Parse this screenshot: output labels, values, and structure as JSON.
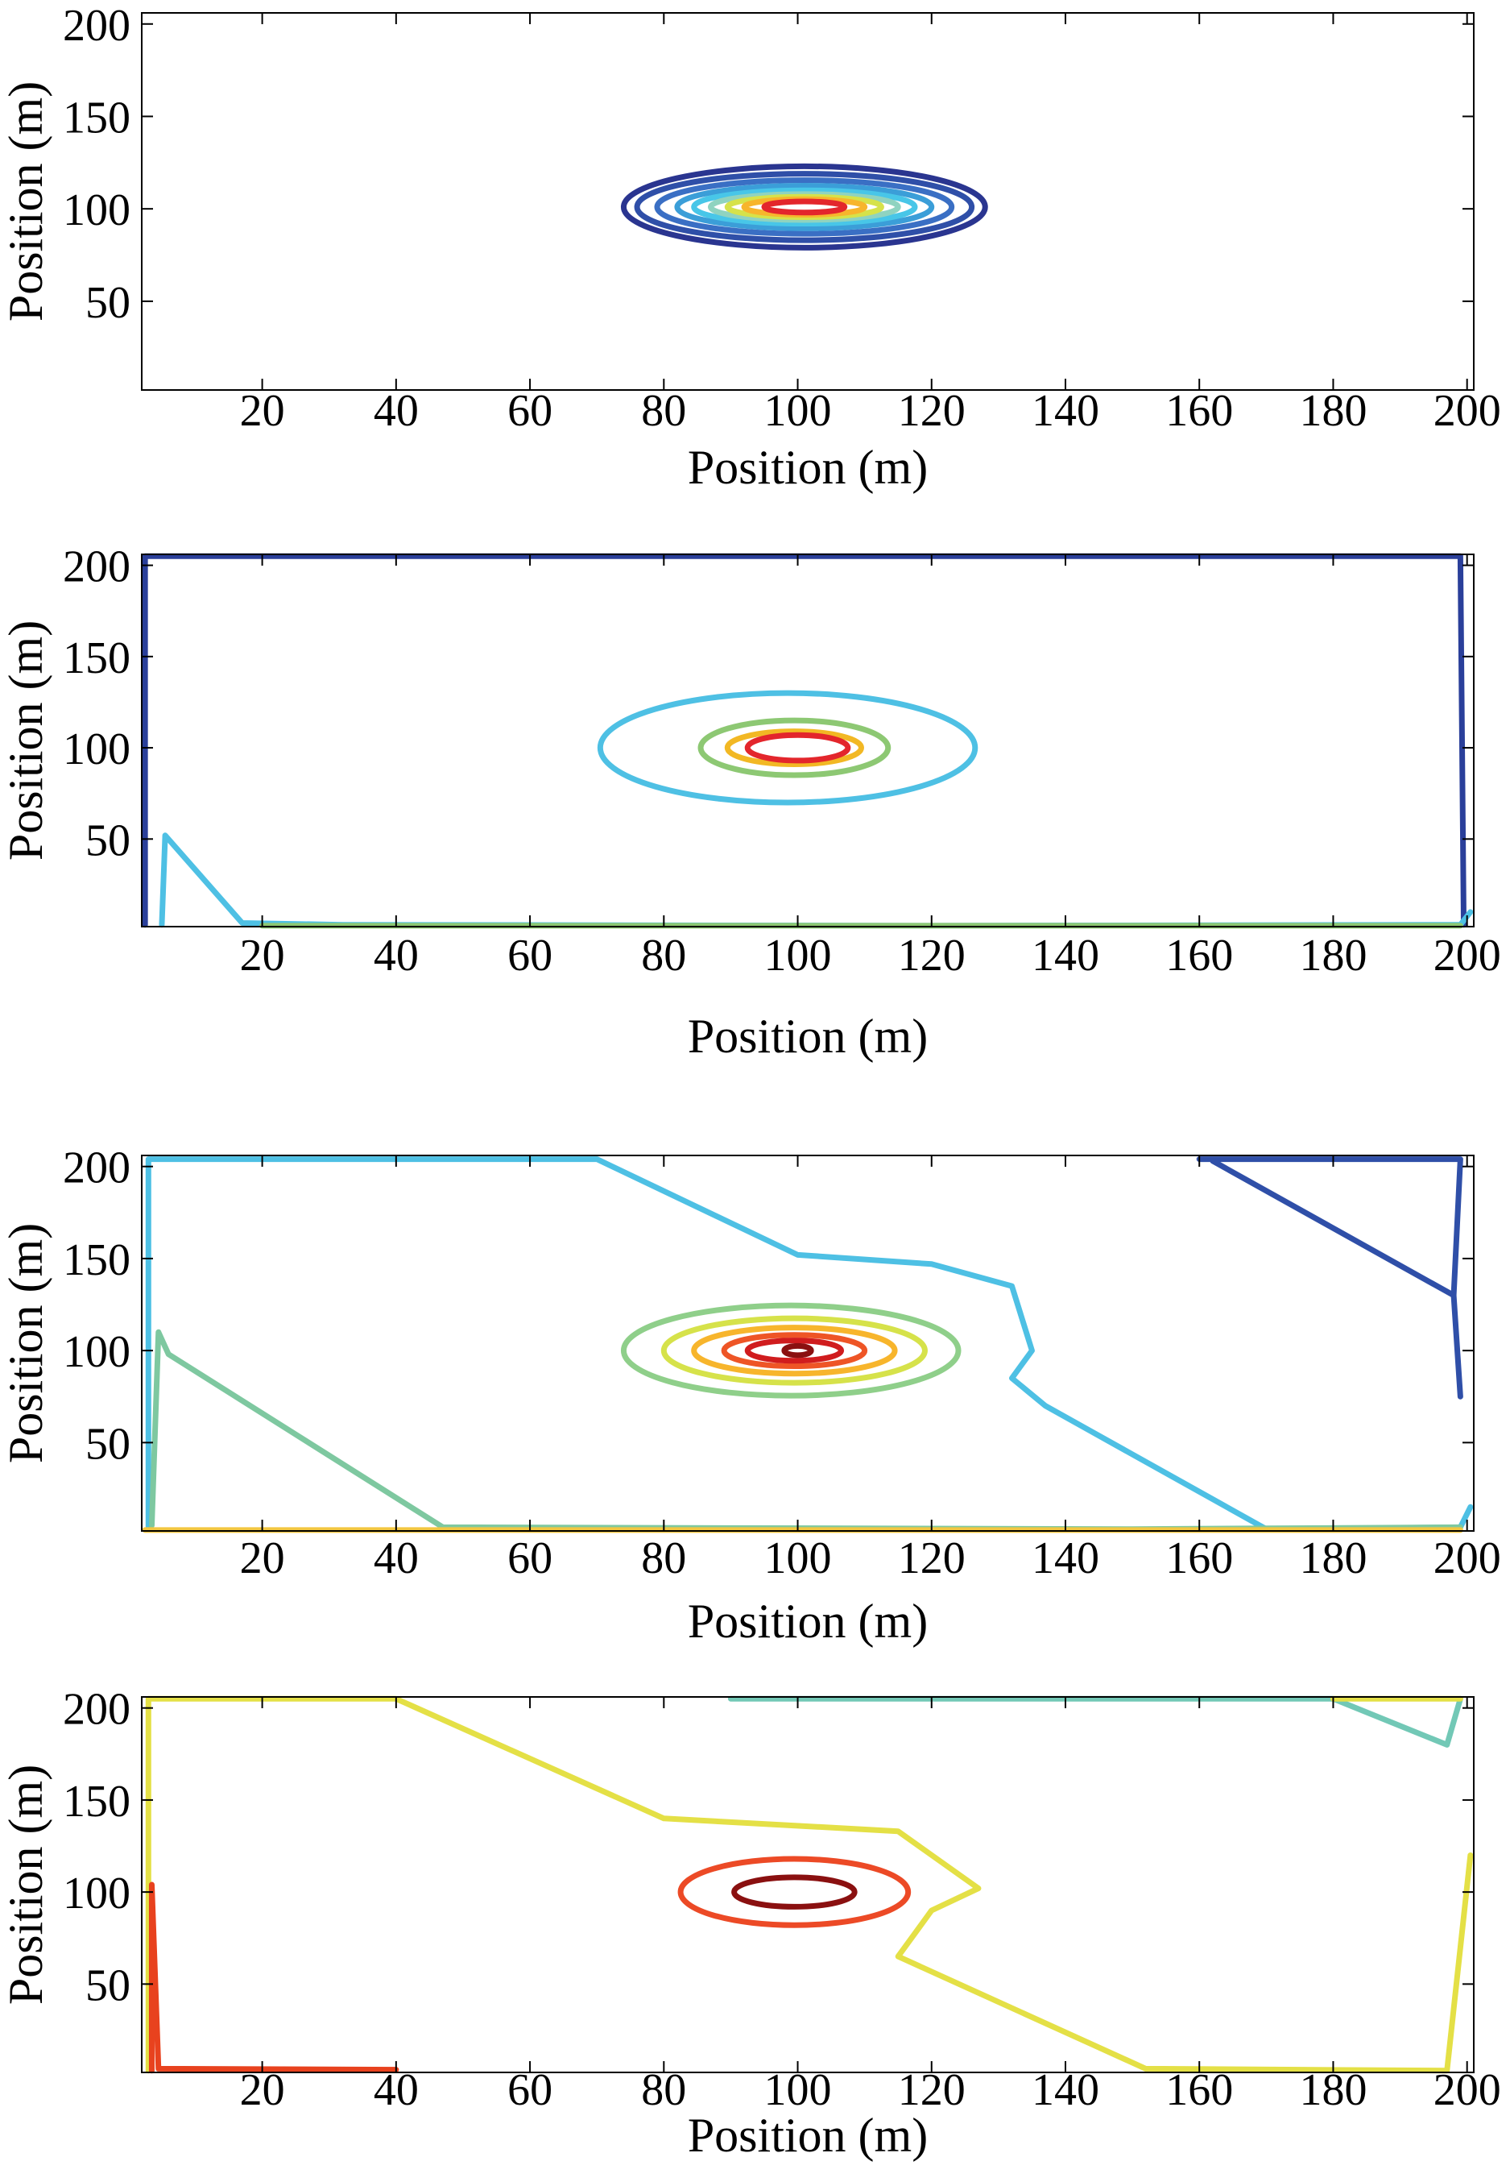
{
  "chart_data": [
    {
      "type": "contour",
      "xlabel": "Position (m)",
      "ylabel": "Position (m)",
      "xlim": [
        2,
        201
      ],
      "ylim": [
        2,
        206
      ],
      "xticks": [
        20,
        40,
        60,
        80,
        100,
        120,
        140,
        160,
        180,
        200
      ],
      "yticks": [
        50,
        100,
        150,
        200
      ],
      "grid": false,
      "contours": [
        {
          "type": "ellipse",
          "cx": 101,
          "cy": 101,
          "rx": 27,
          "ry": 22,
          "color": "#2a3590"
        },
        {
          "type": "ellipse",
          "cx": 101,
          "cy": 101,
          "rx": 25,
          "ry": 18,
          "color": "#2f4fa8"
        },
        {
          "type": "ellipse",
          "cx": 101,
          "cy": 101,
          "rx": 22,
          "ry": 14.5,
          "color": "#3a6fc4"
        },
        {
          "type": "ellipse",
          "cx": 101,
          "cy": 101,
          "rx": 19,
          "ry": 11.5,
          "color": "#3b9ed8"
        },
        {
          "type": "ellipse",
          "cx": 101,
          "cy": 101,
          "rx": 16.5,
          "ry": 9,
          "color": "#48c6e8"
        },
        {
          "type": "ellipse",
          "cx": 101,
          "cy": 101,
          "rx": 14,
          "ry": 7,
          "color": "#8fd3c0"
        },
        {
          "type": "ellipse",
          "cx": 101,
          "cy": 101,
          "rx": 11.5,
          "ry": 5.5,
          "color": "#d6e24a"
        },
        {
          "type": "ellipse",
          "cx": 101,
          "cy": 101,
          "rx": 9,
          "ry": 4.2,
          "color": "#f7b52c"
        },
        {
          "type": "ellipse",
          "cx": 101,
          "cy": 101,
          "rx": 6,
          "ry": 3,
          "color": "#e3262c"
        }
      ]
    },
    {
      "type": "contour",
      "xlabel": "Position (m)",
      "ylabel": "Position (m)",
      "xlim": [
        2,
        201
      ],
      "ylim": [
        2,
        206
      ],
      "xticks": [
        20,
        40,
        60,
        80,
        100,
        120,
        140,
        160,
        180,
        200
      ],
      "yticks": [
        50,
        100,
        150,
        200
      ],
      "grid": false,
      "contours": [
        {
          "type": "ellipse",
          "cx": 98.5,
          "cy": 100,
          "rx": 28,
          "ry": 30,
          "color": "#4ec0e4"
        },
        {
          "type": "ellipse",
          "cx": 99.5,
          "cy": 100,
          "rx": 14,
          "ry": 15,
          "color": "#8dc873"
        },
        {
          "type": "ellipse",
          "cx": 99.5,
          "cy": 100,
          "rx": 10,
          "ry": 9,
          "color": "#f2b824"
        },
        {
          "type": "ellipse",
          "cx": 100,
          "cy": 100,
          "rx": 7.5,
          "ry": 7,
          "color": "#e3262c"
        },
        {
          "type": "line",
          "color": "#2a3f9a",
          "points": [
            [
              2.5,
              3
            ],
            [
              2.5,
              205
            ],
            [
              199,
              205
            ],
            [
              199.5,
              3
            ]
          ]
        },
        {
          "type": "line",
          "color": "#4ec0e4",
          "points": [
            [
              5,
              3
            ],
            [
              5.5,
              52
            ],
            [
              17,
              4
            ],
            [
              32,
              3
            ],
            [
              120,
              2.5
            ],
            [
              199,
              3
            ],
            [
              200.5,
              10
            ]
          ]
        },
        {
          "type": "line",
          "color": "#8dc873",
          "points": [
            [
              20,
              2.5
            ],
            [
              199,
              2.5
            ]
          ]
        }
      ]
    },
    {
      "type": "contour",
      "xlabel": "Position (m)",
      "ylabel": "Position (m)",
      "xlim": [
        2,
        201
      ],
      "ylim": [
        2,
        206
      ],
      "xticks": [
        20,
        40,
        60,
        80,
        100,
        120,
        140,
        160,
        180,
        200
      ],
      "yticks": [
        50,
        100,
        150,
        200
      ],
      "grid": false,
      "contours": [
        {
          "type": "ellipse",
          "cx": 99,
          "cy": 100,
          "rx": 25,
          "ry": 24.5,
          "color": "#8fcf8a"
        },
        {
          "type": "ellipse",
          "cx": 99.5,
          "cy": 100,
          "rx": 19.5,
          "ry": 17.5,
          "color": "#d6e24a"
        },
        {
          "type": "ellipse",
          "cx": 99.5,
          "cy": 100,
          "rx": 15,
          "ry": 12.5,
          "color": "#f7b52c"
        },
        {
          "type": "ellipse",
          "cx": 99.5,
          "cy": 100,
          "rx": 10.5,
          "ry": 8.5,
          "color": "#ee5526"
        },
        {
          "type": "ellipse",
          "cx": 99.5,
          "cy": 100,
          "rx": 7,
          "ry": 5.5,
          "color": "#d01c1e"
        },
        {
          "type": "ellipse",
          "cx": 100,
          "cy": 100,
          "rx": 2,
          "ry": 2.5,
          "color": "#8a1010"
        },
        {
          "type": "line",
          "color": "#4ec0e4",
          "points": [
            [
              3,
              3
            ],
            [
              3,
              204
            ],
            [
              70,
              204
            ],
            [
              100,
              152
            ],
            [
              120,
              147
            ],
            [
              132,
              135
            ],
            [
              135,
              100
            ],
            [
              132,
              85
            ],
            [
              137,
              70
            ],
            [
              170,
              3
            ],
            [
              199,
              4
            ],
            [
              200.5,
              15
            ]
          ]
        },
        {
          "type": "line",
          "color": "#2f4fa8",
          "points": [
            [
              160,
              204
            ],
            [
              199,
              204
            ],
            [
              198,
              130
            ],
            [
              162,
              203
            ]
          ]
        },
        {
          "type": "line",
          "color": "#2f4fa8",
          "points": [
            [
              198,
              130
            ],
            [
              199,
              75
            ]
          ]
        },
        {
          "type": "line",
          "color": "#7ec8a0",
          "points": [
            [
              3.5,
              5
            ],
            [
              4.5,
              110
            ],
            [
              6,
              98
            ],
            [
              47,
              4
            ],
            [
              150,
              3
            ],
            [
              199,
              4
            ]
          ]
        },
        {
          "type": "line",
          "color": "#f2c640",
          "points": [
            [
              2.5,
              2.5
            ],
            [
              199,
              2.5
            ]
          ]
        }
      ]
    },
    {
      "type": "contour",
      "xlabel": "Position (m)",
      "ylabel": "Position (m)",
      "xlim": [
        2,
        201
      ],
      "ylim": [
        2,
        206
      ],
      "xticks": [
        20,
        40,
        60,
        80,
        100,
        120,
        140,
        160,
        180,
        200
      ],
      "yticks": [
        50,
        100,
        150,
        200
      ],
      "grid": false,
      "contours": [
        {
          "type": "ellipse",
          "cx": 99.5,
          "cy": 100,
          "rx": 17,
          "ry": 18,
          "color": "#ec4a26"
        },
        {
          "type": "ellipse",
          "cx": 99.5,
          "cy": 100,
          "rx": 9,
          "ry": 8,
          "color": "#8a1010"
        },
        {
          "type": "line",
          "color": "#e4e046",
          "points": [
            [
              3,
              3
            ],
            [
              3,
              205
            ],
            [
              40,
              205
            ],
            [
              80,
              140
            ],
            [
              115,
              133
            ],
            [
              127,
              102
            ],
            [
              120,
              90
            ],
            [
              115,
              65
            ],
            [
              152,
              4
            ],
            [
              197,
              3
            ],
            [
              200.5,
              120
            ]
          ]
        },
        {
          "type": "line",
          "color": "#72c8b6",
          "points": [
            [
              90,
              205
            ],
            [
              180,
              205
            ],
            [
              197,
              180
            ],
            [
              199,
              205
            ]
          ]
        },
        {
          "type": "line",
          "color": "#e4e046",
          "points": [
            [
              180,
              205
            ],
            [
              199,
              205
            ]
          ]
        },
        {
          "type": "line",
          "color": "#e8421e",
          "points": [
            [
              3.5,
              3
            ],
            [
              3.5,
              104
            ],
            [
              4.5,
              4
            ],
            [
              40,
              3.5
            ]
          ]
        }
      ]
    }
  ]
}
